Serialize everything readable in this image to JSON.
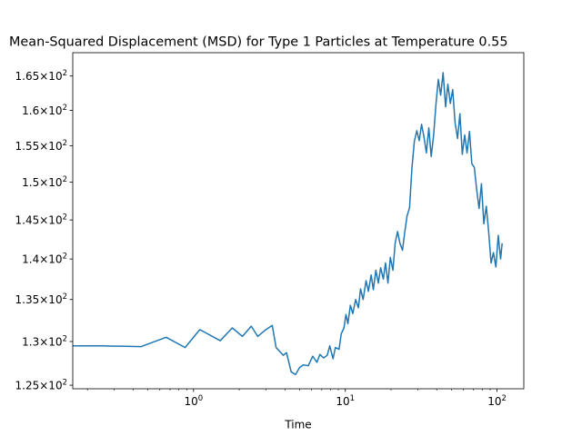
{
  "chart_data": {
    "type": "line",
    "title": "Mean-Squared Displacement (MSD) for Type 1 Particles at Temperature 0.55",
    "xlabel": "Time",
    "ylabel": "",
    "xscale": "log",
    "yscale": "log",
    "xlim": [
      0.16,
      150
    ],
    "ylim": [
      124.6,
      168.5
    ],
    "grid": false,
    "color": "#1f77b4",
    "x_ticks": [
      {
        "label": "10",
        "exp": "0",
        "value": 1
      },
      {
        "label": "10",
        "exp": "1",
        "value": 10
      },
      {
        "label": "10",
        "exp": "2",
        "value": 100
      }
    ],
    "y_ticks": [
      {
        "label": "1.25×10",
        "exp": "2",
        "value": 125
      },
      {
        "label": "1.3×10",
        "exp": "2",
        "value": 130
      },
      {
        "label": "1.35×10",
        "exp": "2",
        "value": 135
      },
      {
        "label": "1.4×10",
        "exp": "2",
        "value": 140
      },
      {
        "label": "1.45×10",
        "exp": "2",
        "value": 145
      },
      {
        "label": "1.5×10",
        "exp": "2",
        "value": 150
      },
      {
        "label": "1.55×10",
        "exp": "2",
        "value": 155
      },
      {
        "label": "1.6×10",
        "exp": "2",
        "value": 160
      },
      {
        "label": "1.65×10",
        "exp": "2",
        "value": 165
      }
    ],
    "series": [
      {
        "x": [
          0.16,
          0.25,
          0.45,
          0.66,
          0.88,
          1.1,
          1.5,
          1.8,
          2.1,
          2.4,
          2.65,
          3.0,
          3.3,
          3.5,
          3.9,
          4.1,
          4.4,
          4.7,
          5.0,
          5.3,
          5.7,
          6.1,
          6.5,
          6.8,
          7.2,
          7.6,
          7.9,
          8.3,
          8.6,
          9.1,
          9.4,
          9.8,
          10.1,
          10.4,
          10.8,
          11.2,
          11.7,
          12.2,
          12.6,
          13.1,
          13.7,
          14.2,
          14.8,
          15.3,
          15.9,
          16.5,
          17.1,
          17.8,
          18.4,
          19.1,
          19.8,
          20.6,
          21.3,
          22.1,
          22.9,
          23.8,
          24.6,
          25.5,
          26.5,
          27.5,
          28.5,
          29.6,
          30.7,
          31.8,
          33.0,
          34.2,
          35.5,
          36.8,
          38.2,
          39.6,
          41.0,
          42.5,
          44.1,
          45.8,
          47.4,
          49.2,
          51.0,
          52.9,
          54.9,
          56.9,
          59.0,
          61.2,
          63.4,
          65.8,
          68.2,
          70.8,
          73.4,
          76.1,
          78.9,
          81.8,
          84.9,
          88.0,
          91.3,
          94.6,
          98.2,
          101.8,
          105.5,
          108.0
        ],
        "y": [
          129.5,
          129.5,
          129.4,
          130.5,
          129.3,
          131.4,
          130.1,
          131.6,
          130.6,
          131.8,
          130.6,
          131.4,
          131.9,
          129.3,
          128.4,
          128.7,
          126.5,
          126.2,
          127.0,
          127.3,
          127.2,
          128.3,
          127.6,
          128.5,
          128.1,
          128.4,
          129.5,
          128.0,
          129.3,
          129.1,
          130.9,
          131.6,
          133.2,
          132.1,
          134.3,
          133.3,
          135.0,
          134.0,
          136.3,
          135.0,
          137.3,
          136.0,
          138.0,
          136.2,
          138.6,
          137.0,
          138.9,
          137.5,
          139.5,
          137.0,
          140.2,
          138.6,
          142.0,
          143.5,
          142.0,
          141.1,
          143.3,
          145.5,
          146.6,
          152.0,
          155.6,
          157.1,
          155.7,
          158.0,
          156.2,
          154.0,
          157.5,
          153.5,
          156.5,
          161.0,
          164.5,
          162.2,
          165.5,
          160.5,
          163.8,
          161.0,
          163.0,
          158.2,
          156.0,
          159.5,
          153.8,
          156.5,
          154.0,
          157.0,
          152.5,
          152.0,
          149.0,
          146.5,
          149.8,
          144.5,
          146.8,
          143.5,
          139.5,
          140.8,
          139.0,
          143.0,
          140.0,
          142.0
        ]
      }
    ]
  }
}
